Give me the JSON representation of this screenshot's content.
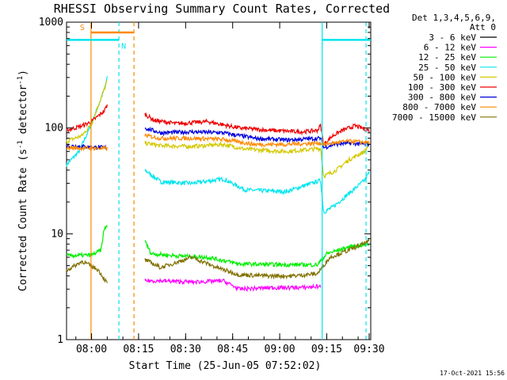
{
  "chart_data": {
    "type": "line",
    "title": "RHESSI Observing Summary Count Rates, Corrected",
    "xlabel": "Start Time (25-Jun-05 07:52:02)",
    "ylabel": "Corrected Count Rate (s",
    "ylabel_sup1": "-1",
    "ylabel_mid": " detector",
    "ylabel_sup2": "-1",
    "ylabel_end": ")",
    "yscale": "log",
    "xlim_minutes": [
      0,
      97
    ],
    "ylim": [
      1,
      1000
    ],
    "x_ticks": [
      {
        "label": "08:00",
        "minutes": 7.97
      },
      {
        "label": "08:15",
        "minutes": 22.97
      },
      {
        "label": "08:30",
        "minutes": 37.97
      },
      {
        "label": "08:45",
        "minutes": 52.97
      },
      {
        "label": "09:00",
        "minutes": 67.97
      },
      {
        "label": "09:15",
        "minutes": 82.97
      },
      {
        "label": "09:30",
        "minutes": 97.97
      }
    ],
    "y_ticks": [
      {
        "label": "1",
        "value": 1
      },
      {
        "label": "10",
        "value": 10
      },
      {
        "label": "100",
        "value": 100
      },
      {
        "label": "1000",
        "value": 1000
      }
    ],
    "legend": {
      "header": [
        "Det 1,3,4,5,6,9,",
        "Att 0"
      ],
      "entries": [
        {
          "label": "3 - 6 keV",
          "color": "#000000"
        },
        {
          "label": "6 - 12 keV",
          "color": "#ff00ff"
        },
        {
          "label": "12 - 25 keV",
          "color": "#00ee00"
        },
        {
          "label": "25 - 50 keV",
          "color": "#00e5ee"
        },
        {
          "label": "50 - 100 keV",
          "color": "#d4c800"
        },
        {
          "label": "100 - 300 keV",
          "color": "#ee0000"
        },
        {
          "label": "300 - 800 keV",
          "color": "#0000dd"
        },
        {
          "label": "800 - 7000 keV",
          "color": "#ff8800"
        },
        {
          "label": "7000 - 15000 keV",
          "color": "#807000"
        }
      ]
    },
    "segments": [
      [
        0,
        13
      ],
      [
        25,
        96.5
      ]
    ],
    "series": [
      {
        "name": "25 - 50 keV",
        "color": "#00e5ee",
        "points": [
          [
            0,
            45
          ],
          [
            4,
            60
          ],
          [
            8,
            110
          ],
          [
            12,
            230
          ],
          [
            13,
            300
          ],
          [
            25,
            40
          ],
          [
            30,
            31
          ],
          [
            40,
            30
          ],
          [
            50,
            33
          ],
          [
            57,
            26
          ],
          [
            70,
            25
          ],
          [
            81,
            32
          ],
          [
            82,
            16
          ],
          [
            85,
            18
          ],
          [
            90,
            24
          ],
          [
            95,
            32
          ],
          [
            96.5,
            38
          ]
        ]
      },
      {
        "name": "50 - 100 keV",
        "color": "#d4c800",
        "points": [
          [
            0,
            75
          ],
          [
            5,
            85
          ],
          [
            8,
            110
          ],
          [
            12,
            230
          ],
          [
            13,
            280
          ],
          [
            25,
            72
          ],
          [
            30,
            68
          ],
          [
            40,
            67
          ],
          [
            50,
            70
          ],
          [
            57,
            63
          ],
          [
            70,
            60
          ],
          [
            81,
            64
          ],
          [
            82,
            35
          ],
          [
            86,
            40
          ],
          [
            90,
            50
          ],
          [
            95,
            60
          ],
          [
            96.5,
            70
          ]
        ]
      },
      {
        "name": "100 - 300 keV",
        "color": "#ee0000",
        "points": [
          [
            0,
            95
          ],
          [
            5,
            105
          ],
          [
            8,
            115
          ],
          [
            12,
            145
          ],
          [
            13,
            165
          ],
          [
            25,
            135
          ],
          [
            28,
            118
          ],
          [
            35,
            110
          ],
          [
            45,
            115
          ],
          [
            55,
            100
          ],
          [
            65,
            95
          ],
          [
            75,
            92
          ],
          [
            80,
            95
          ],
          [
            81,
            106
          ],
          [
            82,
            70
          ],
          [
            85,
            85
          ],
          [
            88,
            95
          ],
          [
            92,
            105
          ],
          [
            96.5,
            95
          ]
        ]
      },
      {
        "name": "300 - 800 keV",
        "color": "#0000dd",
        "points": [
          [
            0,
            68
          ],
          [
            13,
            65
          ],
          [
            25,
            100
          ],
          [
            30,
            90
          ],
          [
            40,
            92
          ],
          [
            50,
            90
          ],
          [
            60,
            80
          ],
          [
            70,
            77
          ],
          [
            81,
            80
          ],
          [
            82,
            65
          ],
          [
            85,
            70
          ],
          [
            90,
            72
          ],
          [
            96.5,
            70
          ]
        ]
      },
      {
        "name": "800 - 7000 keV",
        "color": "#ff8800",
        "points": [
          [
            0,
            65
          ],
          [
            13,
            64
          ],
          [
            25,
            85
          ],
          [
            30,
            80
          ],
          [
            40,
            80
          ],
          [
            50,
            78
          ],
          [
            60,
            70
          ],
          [
            70,
            70
          ],
          [
            81,
            72
          ],
          [
            82,
            70
          ],
          [
            85,
            72
          ],
          [
            90,
            75
          ],
          [
            96.5,
            73
          ]
        ]
      },
      {
        "name": "12 - 25 keV",
        "color": "#00ee00",
        "points": [
          [
            0,
            6.2
          ],
          [
            8,
            6.3
          ],
          [
            11,
            7
          ],
          [
            12,
            11
          ],
          [
            13,
            12
          ],
          [
            25,
            8.5
          ],
          [
            27,
            6.5
          ],
          [
            35,
            6.2
          ],
          [
            45,
            6
          ],
          [
            55,
            5.2
          ],
          [
            70,
            5.1
          ],
          [
            80,
            5.1
          ],
          [
            83,
            6.5
          ],
          [
            90,
            7.5
          ],
          [
            96.5,
            8
          ]
        ]
      },
      {
        "name": "7000 - 15000 keV",
        "color": "#807000",
        "points": [
          [
            0,
            4.5
          ],
          [
            5,
            5.5
          ],
          [
            10,
            4.6
          ],
          [
            13,
            3.4
          ],
          [
            25,
            5.7
          ],
          [
            30,
            4.8
          ],
          [
            40,
            6
          ],
          [
            48,
            4.8
          ],
          [
            55,
            4.1
          ],
          [
            65,
            4
          ],
          [
            72,
            4
          ],
          [
            80,
            4.2
          ],
          [
            84,
            6
          ],
          [
            90,
            7
          ],
          [
            96.5,
            8.5
          ]
        ]
      },
      {
        "name": "6 - 12 keV",
        "color": "#ff00ff",
        "points": [
          [
            25,
            3.6
          ],
          [
            30,
            3.6
          ],
          [
            40,
            3.5
          ],
          [
            50,
            3.6
          ],
          [
            55,
            3
          ],
          [
            65,
            3.1
          ],
          [
            75,
            3.1
          ],
          [
            81,
            3.2
          ]
        ]
      }
    ],
    "vertical_lines": [
      {
        "minutes": 7.8,
        "color": "#ff8800",
        "style": "solid"
      },
      {
        "minutes": 21.5,
        "color": "#ff8800",
        "style": "dashed"
      },
      {
        "minutes": 16.7,
        "color": "#00e5ee",
        "style": "dashed"
      },
      {
        "minutes": 81.5,
        "color": "#00e5ee",
        "style": "solid"
      },
      {
        "minutes": 95.5,
        "color": "#00e5ee",
        "style": "dashed"
      }
    ],
    "flag_bars": [
      {
        "label": "S",
        "color": "#ff8800",
        "from": 7.8,
        "to": 21.5,
        "level": 800
      },
      {
        "label": "N",
        "color": "#00e5ee",
        "from": 0,
        "to": 16.7,
        "level": 680
      },
      {
        "label": "",
        "color": "#00e5ee",
        "from": 81.5,
        "to": 97,
        "level": 680
      }
    ]
  },
  "footer": {
    "timestamp": "17-Oct-2021 15:56"
  }
}
